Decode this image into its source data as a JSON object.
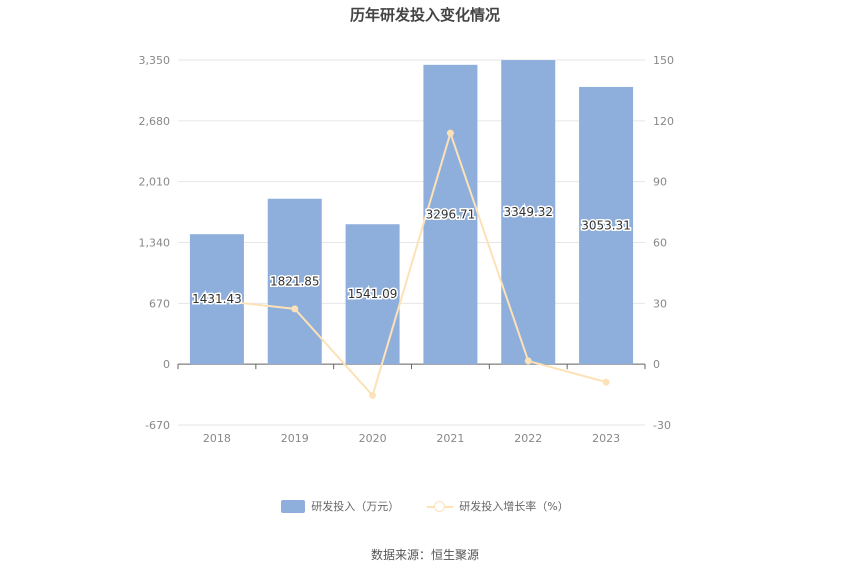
{
  "chart_data": {
    "type": "bar",
    "title": "历年研发投入变化情况",
    "categories": [
      "2018",
      "2019",
      "2020",
      "2021",
      "2022",
      "2023"
    ],
    "series": [
      {
        "name": "研发投入（万元）",
        "type": "bar",
        "axis": "left",
        "values": [
          1431.43,
          1821.85,
          1541.09,
          3296.71,
          3349.32,
          3053.31
        ],
        "labels": [
          "1431.43",
          "1821.85",
          "1541.09",
          "3296.71",
          "3349.32",
          "3053.31"
        ]
      },
      {
        "name": "研发投入增长率（%）",
        "type": "line",
        "axis": "right",
        "values": [
          31.5,
          27.27,
          -15.41,
          113.92,
          1.6,
          -8.84
        ]
      }
    ],
    "y_left": {
      "ticks": [
        "3,350",
        "2,680",
        "2,010",
        "1,340",
        "670",
        "0",
        "-670"
      ],
      "range": [
        -670,
        3350
      ]
    },
    "y_right": {
      "ticks": [
        "150",
        "120",
        "90",
        "60",
        "30",
        "0",
        "-30"
      ],
      "range": [
        -30,
        150
      ]
    },
    "grid": true,
    "legend_position": "bottom",
    "colors": {
      "bar": "#8eaedc",
      "line": "#fce2b6"
    }
  },
  "source": "数据来源：恒生聚源"
}
